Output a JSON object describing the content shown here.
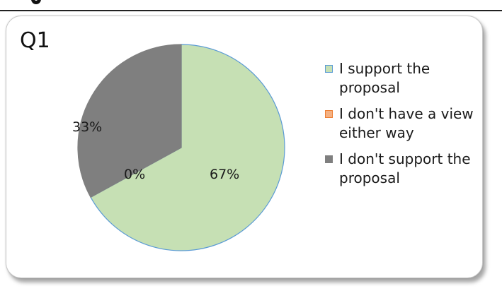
{
  "chart_data": {
    "type": "pie",
    "title": "Q1",
    "series": [
      {
        "name": "",
        "labels": [
          "I support the proposal",
          "I don't have a view either way",
          "I don't support the proposal"
        ],
        "values": [
          67,
          0,
          33
        ],
        "data_labels": [
          "67%",
          "0%",
          "33%"
        ],
        "colors": [
          "#c6e0b4",
          "#f4b183",
          "#7f7f7f"
        ],
        "edge_colors": [
          "#5b9bd5",
          "#ed7d31",
          "#7f7f7f"
        ]
      }
    ],
    "legend_position": "right"
  }
}
